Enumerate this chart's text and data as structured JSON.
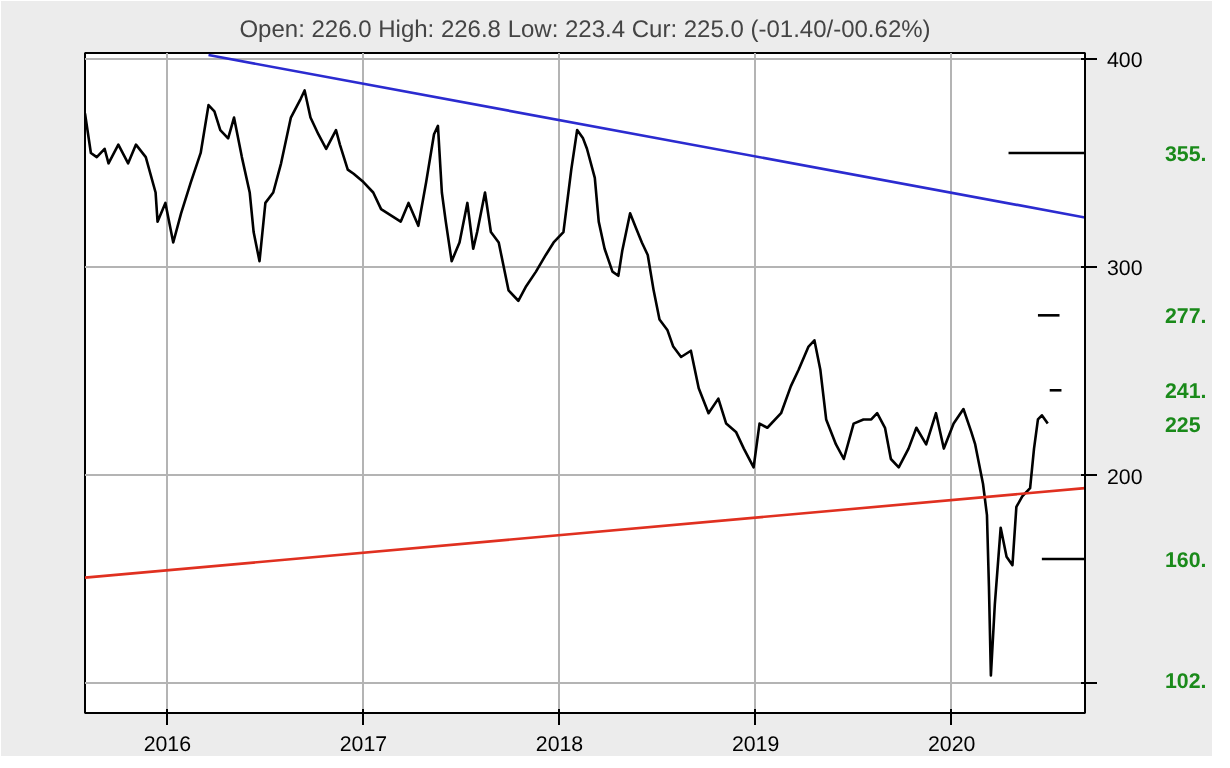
{
  "chart_data": {
    "type": "line",
    "subtitle": "Open: 226.0 High: 226.8 Low: 223.4 Cur: 225.0 (-01.40/-00.62%)",
    "xlim": [
      2015.58,
      2020.68
    ],
    "xticks": [
      2016,
      2017,
      2018,
      2019,
      2020
    ],
    "ylim": [
      86,
      403
    ],
    "yticks": [
      {
        "value": 100,
        "label": null
      },
      200,
      300,
      400
    ],
    "grid": true,
    "line_style": "solid",
    "series": [
      {
        "color": "#000000",
        "x": [
          2015.58,
          2015.61,
          2015.64,
          2015.68,
          2015.7,
          2015.75,
          2015.8,
          2015.84,
          2015.89,
          2015.94,
          2015.95,
          2015.99,
          2016.03,
          2016.07,
          2016.12,
          2016.17,
          2016.21,
          2016.24,
          2016.27,
          2016.31,
          2016.34,
          2016.38,
          2016.42,
          2016.44,
          2016.47,
          2016.5,
          2016.54,
          2016.58,
          2016.63,
          2016.68,
          2016.7,
          2016.73,
          2016.77,
          2016.81,
          2016.86,
          2016.88,
          2016.92,
          2016.95,
          2017.0,
          2017.05,
          2017.09,
          2017.14,
          2017.19,
          2017.23,
          2017.28,
          2017.32,
          2017.36,
          2017.38,
          2017.4,
          2017.42,
          2017.45,
          2017.49,
          2017.53,
          2017.56,
          2017.58,
          2017.62,
          2017.65,
          2017.69,
          2017.74,
          2017.79,
          2017.83,
          2017.88,
          2017.93,
          2017.97,
          2018.02,
          2018.06,
          2018.09,
          2018.12,
          2018.14,
          2018.18,
          2018.2,
          2018.23,
          2018.27,
          2018.3,
          2018.32,
          2018.36,
          2018.39,
          2018.42,
          2018.45,
          2018.48,
          2018.51,
          2018.55,
          2018.58,
          2018.62,
          2018.67,
          2018.71,
          2018.76,
          2018.81,
          2018.85,
          2018.9,
          2018.94,
          2018.99,
          2019.02,
          2019.06,
          2019.13,
          2019.18,
          2019.22,
          2019.27,
          2019.3,
          2019.33,
          2019.36,
          2019.41,
          2019.45,
          2019.5,
          2019.55,
          2019.59,
          2019.62,
          2019.66,
          2019.69,
          2019.73,
          2019.78,
          2019.82,
          2019.87,
          2019.92,
          2019.96,
          2020.01,
          2020.06,
          2020.1,
          2020.12,
          2020.16,
          2020.18,
          2020.19,
          2020.2,
          2020.22,
          2020.25,
          2020.28,
          2020.31,
          2020.33,
          2020.36,
          2020.4,
          2020.42,
          2020.44,
          2020.46,
          2020.49
        ],
        "values": [
          374,
          355,
          353,
          357,
          350,
          359,
          350,
          359,
          353,
          336,
          322,
          331,
          312,
          326,
          341,
          355,
          378,
          375,
          366,
          362,
          372,
          353,
          336,
          317,
          303,
          331,
          336,
          350,
          372,
          381,
          385,
          372,
          364,
          357,
          366,
          359,
          347,
          345,
          341,
          336,
          328,
          325,
          322,
          331,
          320,
          341,
          364,
          368,
          336,
          322,
          303,
          312,
          331,
          309,
          317,
          336,
          317,
          312,
          289,
          284,
          291,
          298,
          306,
          312,
          317,
          347,
          366,
          362,
          357,
          343,
          322,
          309,
          298,
          296,
          308,
          326,
          319,
          312,
          306,
          289,
          275,
          270,
          262,
          257,
          260,
          242,
          230,
          237,
          225,
          221,
          213,
          204,
          225,
          223,
          230,
          243,
          251,
          262,
          265,
          251,
          227,
          215,
          208,
          225,
          227,
          227,
          230,
          223,
          208,
          204,
          213,
          223,
          215,
          230,
          213,
          225,
          232,
          221,
          215,
          196,
          181,
          147,
          104,
          138,
          175,
          161,
          157,
          185,
          190,
          194,
          213,
          227,
          229,
          225
        ]
      },
      {
        "color": "#2b2bd0",
        "x": [
          2016.21,
          2020.68
        ],
        "values": [
          402,
          324
        ]
      },
      {
        "color": "#e03020",
        "x": [
          2015.58,
          2020.68
        ],
        "values": [
          151,
          194
        ]
      },
      {
        "color": "#000000",
        "x": [
          2020.29,
          2020.68
        ],
        "values": [
          355,
          355
        ]
      },
      {
        "color": "#000000",
        "x": [
          2020.44,
          2020.55
        ],
        "values": [
          277,
          277
        ]
      },
      {
        "color": "#000000",
        "x": [
          2020.5,
          2020.56
        ],
        "values": [
          241,
          241
        ]
      },
      {
        "color": "#000000",
        "x": [
          2020.46,
          2020.68
        ],
        "values": [
          160,
          160
        ]
      }
    ],
    "y2lim": [
      86,
      403
    ],
    "y2ticks": [
      {
        "value": 355,
        "label": "355."
      },
      {
        "value": 277,
        "label": "277."
      },
      {
        "value": 241,
        "label": "241."
      },
      {
        "value": 225,
        "label": "225"
      },
      {
        "value": 160,
        "label": "160."
      },
      {
        "value": 102,
        "label": "102."
      }
    ]
  }
}
